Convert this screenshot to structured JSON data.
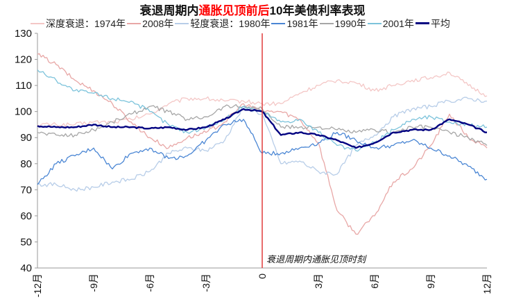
{
  "title": {
    "part1": "衰退周期内",
    "highlight": "通胀见顶前后",
    "part2": "10年美债利率表现",
    "highlight_color": "#ff0000"
  },
  "legend": [
    {
      "label": "深度衰退：1974年",
      "color": "#f4c7c6",
      "width": 1.3
    },
    {
      "label": "2008年",
      "color": "#e8a7a6",
      "width": 1.3
    },
    {
      "label": "轻度衰退：1980年",
      "color": "#b7cde8",
      "width": 1.3
    },
    {
      "label": "1981年",
      "color": "#4a86d4",
      "width": 1.3
    },
    {
      "label": "1990年",
      "color": "#a6a6a6",
      "width": 1.3
    },
    {
      "label": "2001年",
      "color": "#7cc3db",
      "width": 1.3
    },
    {
      "label": "平均",
      "color": "#000080",
      "width": 2.4
    }
  ],
  "annotation": {
    "text": "衰退周期内通胀见顶时刻",
    "line_color": "#e03c3c"
  },
  "chart_data": {
    "type": "line",
    "title": "衰退周期内通胀见顶前后10年美债利率表现",
    "xlabel": "",
    "ylabel": "",
    "x": [
      -12,
      -11,
      -10,
      -9,
      -8,
      -7,
      -6,
      -5,
      -4,
      -3,
      -2,
      -1,
      0,
      1,
      2,
      3,
      4,
      5,
      6,
      7,
      8,
      9,
      10,
      11,
      12
    ],
    "x_tick_labels": [
      "-12月",
      "-9月",
      "-6月",
      "-3月",
      "0",
      "3月",
      "6月",
      "9月",
      "12月"
    ],
    "x_tick_values": [
      -12,
      -9,
      -6,
      -3,
      0,
      3,
      6,
      9,
      12
    ],
    "y_tick_labels": [
      "130",
      "120",
      "110",
      "100",
      "90",
      "80",
      "70",
      "60",
      "50",
      "40"
    ],
    "ylim": [
      40,
      130
    ],
    "xlim": [
      -12,
      12
    ],
    "grid": false,
    "legend_position": "top",
    "annotations": [
      {
        "x": 0,
        "type": "vertical-line",
        "text": "衰退周期内通胀见顶时刻"
      }
    ],
    "series": [
      {
        "name": "深度衰退：1974年",
        "values": [
          95,
          95,
          95,
          96,
          96,
          97,
          99,
          103,
          105,
          105,
          104,
          104,
          103,
          103,
          107,
          110,
          112,
          111,
          108,
          110,
          112,
          113,
          115,
          110,
          106
        ]
      },
      {
        "name": "2008年",
        "values": [
          122,
          118,
          112,
          108,
          103,
          96,
          90,
          86,
          90,
          92,
          96,
          103,
          100,
          100,
          97,
          88,
          62,
          53,
          60,
          73,
          78,
          87,
          99,
          90,
          86
        ]
      },
      {
        "name": "轻度衰退：1980年",
        "values": [
          72,
          72,
          70,
          71,
          73,
          74,
          77,
          84,
          86,
          85,
          89,
          102,
          99,
          80,
          81,
          77,
          76,
          87,
          91,
          98,
          101,
          102,
          104,
          105,
          104
        ]
      },
      {
        "name": "1981年",
        "values": [
          72,
          80,
          83,
          86,
          78,
          84,
          86,
          82,
          83,
          89,
          95,
          97,
          84,
          84,
          86,
          88,
          92,
          89,
          86,
          87,
          89,
          86,
          83,
          79,
          74
        ]
      },
      {
        "name": "1990年",
        "values": [
          92,
          91,
          91,
          93,
          96,
          99,
          102,
          100,
          97,
          98,
          102,
          102,
          101,
          94,
          94,
          94,
          93,
          92,
          93,
          92,
          94,
          94,
          92,
          90,
          87
        ]
      },
      {
        "name": "2001年",
        "values": [
          116,
          112,
          108,
          107,
          105,
          104,
          100,
          95,
          92,
          94,
          97,
          102,
          100,
          96,
          97,
          92,
          87,
          85,
          88,
          93,
          97,
          98,
          96,
          95,
          94
        ]
      },
      {
        "name": "平均",
        "values": [
          94.5,
          94,
          94,
          95,
          94,
          94,
          93.5,
          94,
          93,
          94,
          97,
          101,
          100,
          91,
          92,
          91,
          89,
          86,
          88,
          92,
          93,
          93,
          97,
          95,
          92
        ]
      }
    ]
  }
}
